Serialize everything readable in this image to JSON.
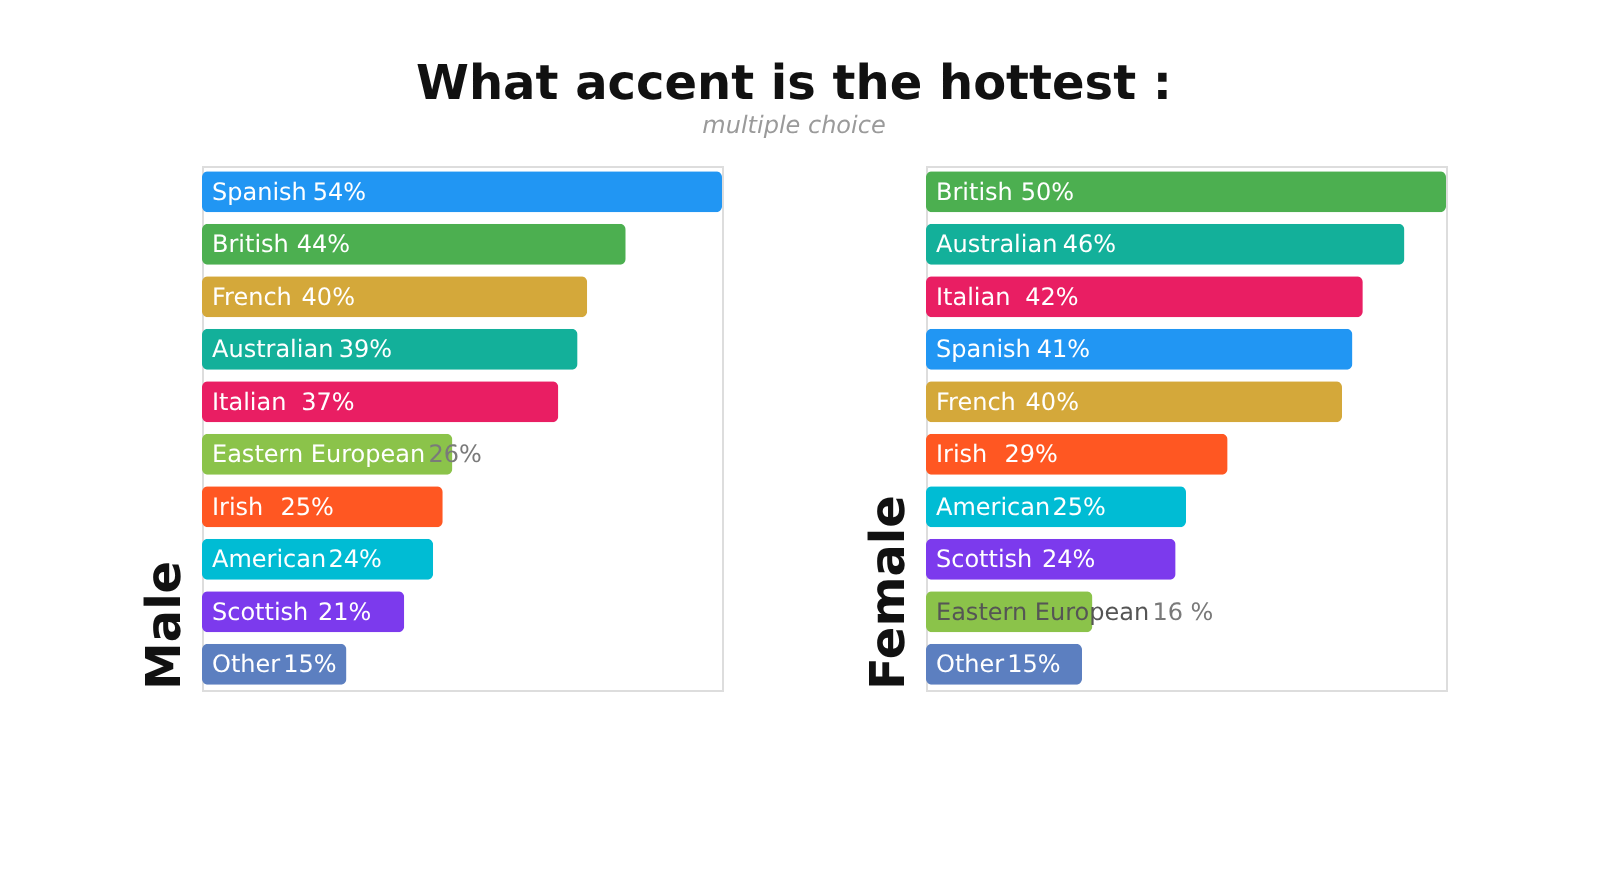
{
  "chart_data": [
    {
      "type": "bar",
      "orientation": "horizontal",
      "title": "What accent is the hottest :",
      "subtitle": "multiple choice",
      "ylabel": "Male",
      "tick_labels": false,
      "categories": [
        "Spanish",
        "British",
        "French",
        "Australian",
        "Italian",
        "Eastern European",
        "Irish",
        "American",
        "Scottish",
        "Other"
      ],
      "values": [
        54,
        44,
        40,
        39,
        37,
        26,
        25,
        24,
        21,
        15
      ],
      "value_labels": [
        "54%",
        "44%",
        "40%",
        "39%",
        "37%",
        "26%",
        "25%",
        "24%",
        "21%",
        "15%"
      ],
      "colors": [
        "#2196f3",
        "#4caf50",
        "#d4a83a",
        "#13b09a",
        "#e91e63",
        "#8bc34a",
        "#ff5722",
        "#00bcd4",
        "#7c3aed",
        "#5c7fc0"
      ]
    },
    {
      "type": "bar",
      "orientation": "horizontal",
      "ylabel": "Female",
      "tick_labels": false,
      "categories": [
        "British",
        "Australian",
        "Italian",
        "Spanish",
        "French",
        "Irish",
        "American",
        "Scottish",
        "Eastern European",
        "Other"
      ],
      "values": [
        50,
        46,
        42,
        41,
        40,
        29,
        25,
        24,
        16,
        15
      ],
      "value_labels": [
        "50%",
        "46%",
        "42%",
        "41%",
        "40%",
        "29%",
        "25%",
        "24%",
        "16 %",
        "15%"
      ],
      "colors": [
        "#4caf50",
        "#13b09a",
        "#e91e63",
        "#2196f3",
        "#d4a83a",
        "#ff5722",
        "#00bcd4",
        "#7c3aed",
        "#8bc34a",
        "#5c7fc0"
      ]
    }
  ]
}
